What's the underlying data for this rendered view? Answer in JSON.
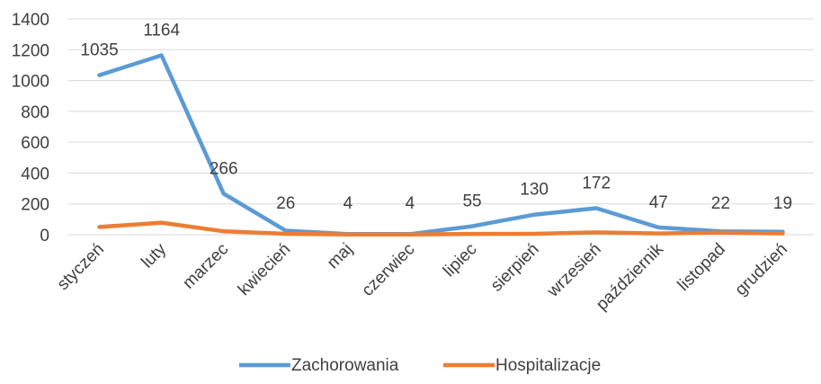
{
  "chart_data": {
    "type": "line",
    "title": "",
    "xlabel": "",
    "ylabel": "",
    "ylim": [
      0,
      1400
    ],
    "yticks": [
      0,
      200,
      400,
      600,
      800,
      1000,
      1200,
      1400
    ],
    "grid": true,
    "legend_position": "bottom",
    "categories": [
      "styczeń",
      "luty",
      "marzec",
      "kwiecień",
      "maj",
      "czerwiec",
      "lipiec",
      "sierpień",
      "wrzesień",
      "październik",
      "listopad",
      "grudzień"
    ],
    "series": [
      {
        "name": "Zachorowania",
        "color": "#5B9BD5",
        "values": [
          1035,
          1164,
          266,
          26,
          4,
          4,
          55,
          130,
          172,
          47,
          22,
          19
        ],
        "data_labels": true
      },
      {
        "name": "Hospitalizacje",
        "color": "#ED7D31",
        "values": [
          50,
          78,
          22,
          6,
          2,
          2,
          5,
          6,
          15,
          8,
          14,
          8
        ],
        "data_labels": false
      }
    ]
  }
}
